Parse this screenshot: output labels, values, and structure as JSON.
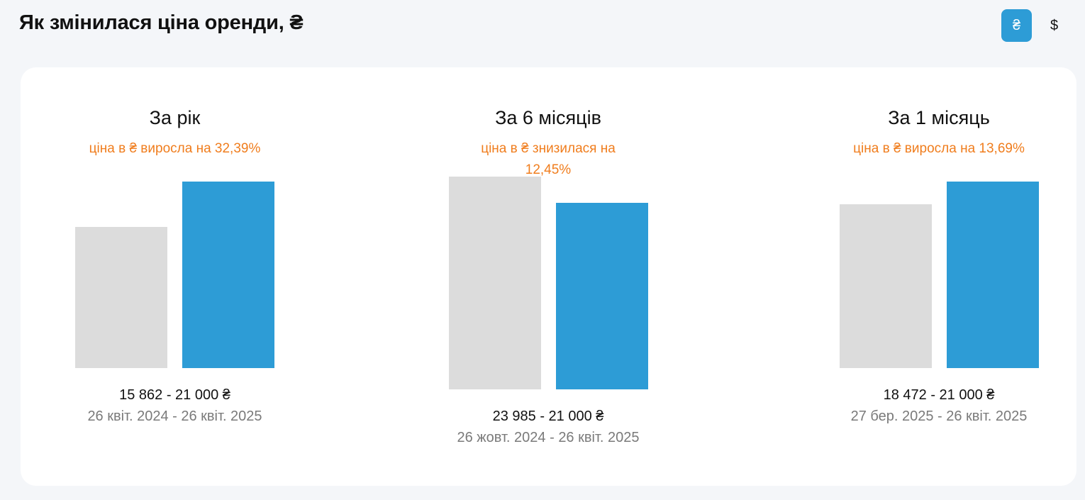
{
  "header": {
    "title": "Як змінилася ціна оренди, ₴"
  },
  "currency_toggle": {
    "options": [
      {
        "label": "₴",
        "active": true
      },
      {
        "label": "$",
        "active": false
      }
    ]
  },
  "colors": {
    "previous_bar": "#dcdcdc",
    "current_bar": "#2d9cd6",
    "change_text": "#f07d1d",
    "active_toggle": "#2d9cd6"
  },
  "panels": [
    {
      "title": "За рік",
      "change": "ціна в ₴ виросла на 32,39%",
      "price_range": "15 862 - 21 000 ₴",
      "date_range": "26 квіт. 2024 - 26 квіт. 2025"
    },
    {
      "title": "За 6 місяців",
      "change_line1": "ціна в ₴ знизилася на",
      "change_line2": "12,45%",
      "price_range": "23 985 - 21 000 ₴",
      "date_range": "26 жовт. 2024 - 26 квіт. 2025"
    },
    {
      "title": "За 1 місяць",
      "change": "ціна в ₴ виросла на 13,69%",
      "price_range": "18 472 - 21 000 ₴",
      "date_range": "27 бер. 2025 - 26 квіт. 2025"
    }
  ],
  "chart_data": [
    {
      "type": "bar",
      "title": "За рік",
      "categories": [
        "26 квіт. 2024",
        "26 квіт. 2025"
      ],
      "values": [
        15862,
        21000
      ],
      "change_percent": 32.39
    },
    {
      "type": "bar",
      "title": "За 6 місяців",
      "categories": [
        "26 жовт. 2024",
        "26 квіт. 2025"
      ],
      "values": [
        23985,
        21000
      ],
      "change_percent": -12.45
    },
    {
      "type": "bar",
      "title": "За 1 місяць",
      "categories": [
        "27 бер. 2025",
        "26 квіт. 2025"
      ],
      "values": [
        18472,
        21000
      ],
      "change_percent": 13.69
    }
  ]
}
